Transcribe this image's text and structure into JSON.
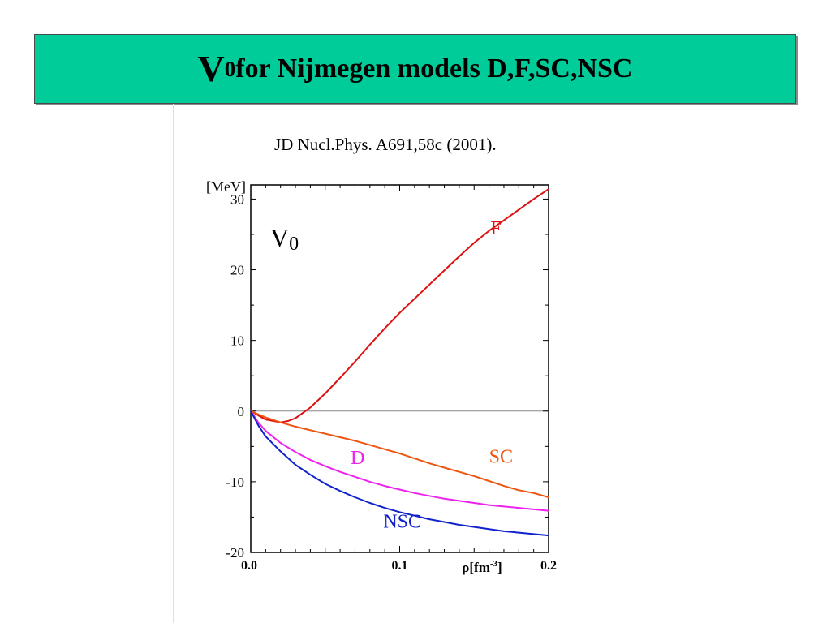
{
  "slide": {
    "title_main": "V",
    "title_sub": "0",
    "title_rest": " for Nijmegen models D,F,SC,NSC",
    "citation": "JD Nucl.Phys. A691,58c (2001).",
    "title_bg": "#00cc99"
  },
  "chart_data": {
    "type": "line",
    "title_main": "V",
    "title_sub": "0",
    "ylabel": "[MeV]",
    "xlabel_prefix": "ρ[fm",
    "xlabel_sup": "-3",
    "xlabel_suffix": "]",
    "xlim": [
      0.0,
      0.2
    ],
    "ylim": [
      -20,
      32
    ],
    "grid": false,
    "legend": "inline curve labels",
    "xticks": [
      {
        "value": 0.0,
        "label": "0.0"
      },
      {
        "value": 0.1,
        "label": "0.1"
      },
      {
        "value": 0.2,
        "label": "0.2"
      }
    ],
    "yticks": [
      {
        "value": 30,
        "label": "30"
      },
      {
        "value": 20,
        "label": "20"
      },
      {
        "value": 10,
        "label": "10"
      },
      {
        "value": 0,
        "label": "0"
      },
      {
        "value": -10,
        "label": "-10"
      },
      {
        "value": -20,
        "label": "-20"
      }
    ],
    "series": [
      {
        "name": "F",
        "color": "#dd1111",
        "label_at": [
          0.161,
          25
        ],
        "x": [
          0.0,
          0.01,
          0.02,
          0.025,
          0.03,
          0.04,
          0.05,
          0.06,
          0.07,
          0.08,
          0.09,
          0.1,
          0.11,
          0.12,
          0.13,
          0.14,
          0.15,
          0.16,
          0.17,
          0.18,
          0.19,
          0.2
        ],
        "y": [
          0.0,
          -1.2,
          -1.6,
          -1.4,
          -1.0,
          0.5,
          2.5,
          4.7,
          7.0,
          9.4,
          11.7,
          13.9,
          15.9,
          17.9,
          19.9,
          21.9,
          23.8,
          25.5,
          27.0,
          28.5,
          30.0,
          31.4
        ]
      },
      {
        "name": "SC",
        "color": "#ee5511",
        "label_at": [
          0.16,
          -7.3
        ],
        "x": [
          0.0,
          0.01,
          0.02,
          0.03,
          0.04,
          0.05,
          0.06,
          0.07,
          0.08,
          0.09,
          0.1,
          0.11,
          0.12,
          0.13,
          0.14,
          0.15,
          0.16,
          0.17,
          0.18,
          0.19,
          0.2
        ],
        "y": [
          0.0,
          -0.9,
          -1.6,
          -2.2,
          -2.7,
          -3.2,
          -3.7,
          -4.2,
          -4.8,
          -5.4,
          -6.0,
          -6.7,
          -7.4,
          -8.0,
          -8.6,
          -9.2,
          -9.9,
          -10.6,
          -11.2,
          -11.6,
          -12.2
        ]
      },
      {
        "name": "D",
        "color": "#ee22ee",
        "label_at": [
          0.067,
          -7.5
        ],
        "x": [
          0.0,
          0.005,
          0.01,
          0.02,
          0.03,
          0.04,
          0.05,
          0.06,
          0.07,
          0.08,
          0.09,
          0.1,
          0.11,
          0.12,
          0.13,
          0.14,
          0.15,
          0.16,
          0.17,
          0.18,
          0.19,
          0.2
        ],
        "y": [
          0.0,
          -1.6,
          -2.8,
          -4.5,
          -5.8,
          -6.9,
          -7.8,
          -8.6,
          -9.3,
          -10.0,
          -10.6,
          -11.1,
          -11.6,
          -12.0,
          -12.4,
          -12.7,
          -13.0,
          -13.3,
          -13.5,
          -13.7,
          -13.9,
          -14.1
        ]
      },
      {
        "name": "NSC",
        "color": "#1122cc",
        "label_at": [
          0.089,
          -16.5
        ],
        "x": [
          0.0,
          0.005,
          0.01,
          0.02,
          0.03,
          0.04,
          0.05,
          0.06,
          0.07,
          0.08,
          0.09,
          0.1,
          0.11,
          0.12,
          0.13,
          0.14,
          0.15,
          0.16,
          0.17,
          0.18,
          0.19,
          0.2
        ],
        "y": [
          0.0,
          -2.0,
          -3.6,
          -5.7,
          -7.6,
          -9.0,
          -10.3,
          -11.3,
          -12.2,
          -13.0,
          -13.7,
          -14.3,
          -14.8,
          -15.3,
          -15.7,
          -16.1,
          -16.4,
          -16.7,
          -17.0,
          -17.2,
          -17.4,
          -17.6
        ]
      }
    ]
  }
}
